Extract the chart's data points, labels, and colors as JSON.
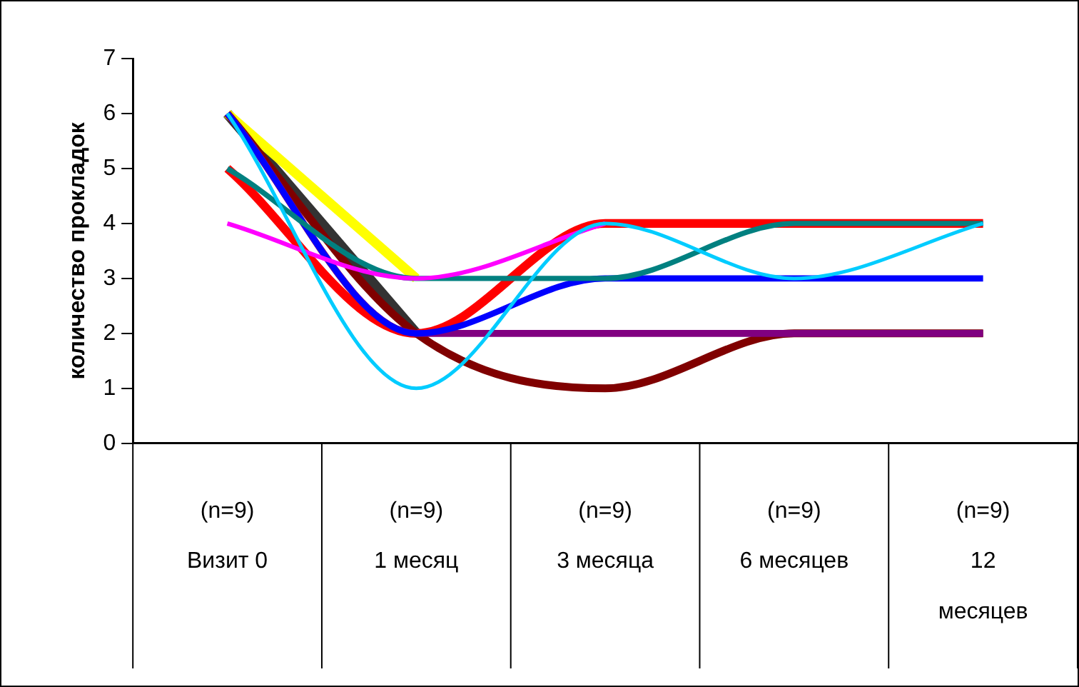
{
  "chart_data": {
    "type": "line",
    "ylabel": "количество прокладок",
    "categories": [
      "(n=9)\nВизит 0",
      "(n=9)\n1 месяц",
      "(n=9)\n3 месяца",
      "(n=9)\n6 месяцев",
      "(n=9)\n12\nмесяцев"
    ],
    "ylim": [
      0,
      7
    ],
    "yticks": [
      0,
      1,
      2,
      3,
      4,
      5,
      6,
      7
    ],
    "grid": false,
    "legend": false,
    "marker": "none",
    "line_style": "solid",
    "series": [
      {
        "color": "#00ccff",
        "values": [
          6,
          1,
          4,
          3,
          4
        ]
      },
      {
        "color": "#ff00ff",
        "values": [
          4,
          3,
          4,
          null,
          null
        ]
      },
      {
        "color": "#008080",
        "values": [
          5,
          3,
          3,
          4,
          4
        ]
      },
      {
        "color": "#0000ff",
        "values": [
          6,
          2,
          3,
          3,
          3
        ]
      },
      {
        "color": "#800080",
        "values": [
          6,
          2,
          2,
          2,
          2
        ]
      },
      {
        "color": "#800000",
        "values": [
          6,
          2,
          1,
          2,
          2
        ]
      },
      {
        "color": "#ff0000",
        "values": [
          5,
          2,
          4,
          4,
          4
        ]
      },
      {
        "color": "#ffff00",
        "values": [
          6,
          3,
          null,
          null,
          null
        ]
      },
      {
        "color": "#333333",
        "values": [
          6,
          2,
          null,
          null,
          null
        ]
      }
    ]
  }
}
